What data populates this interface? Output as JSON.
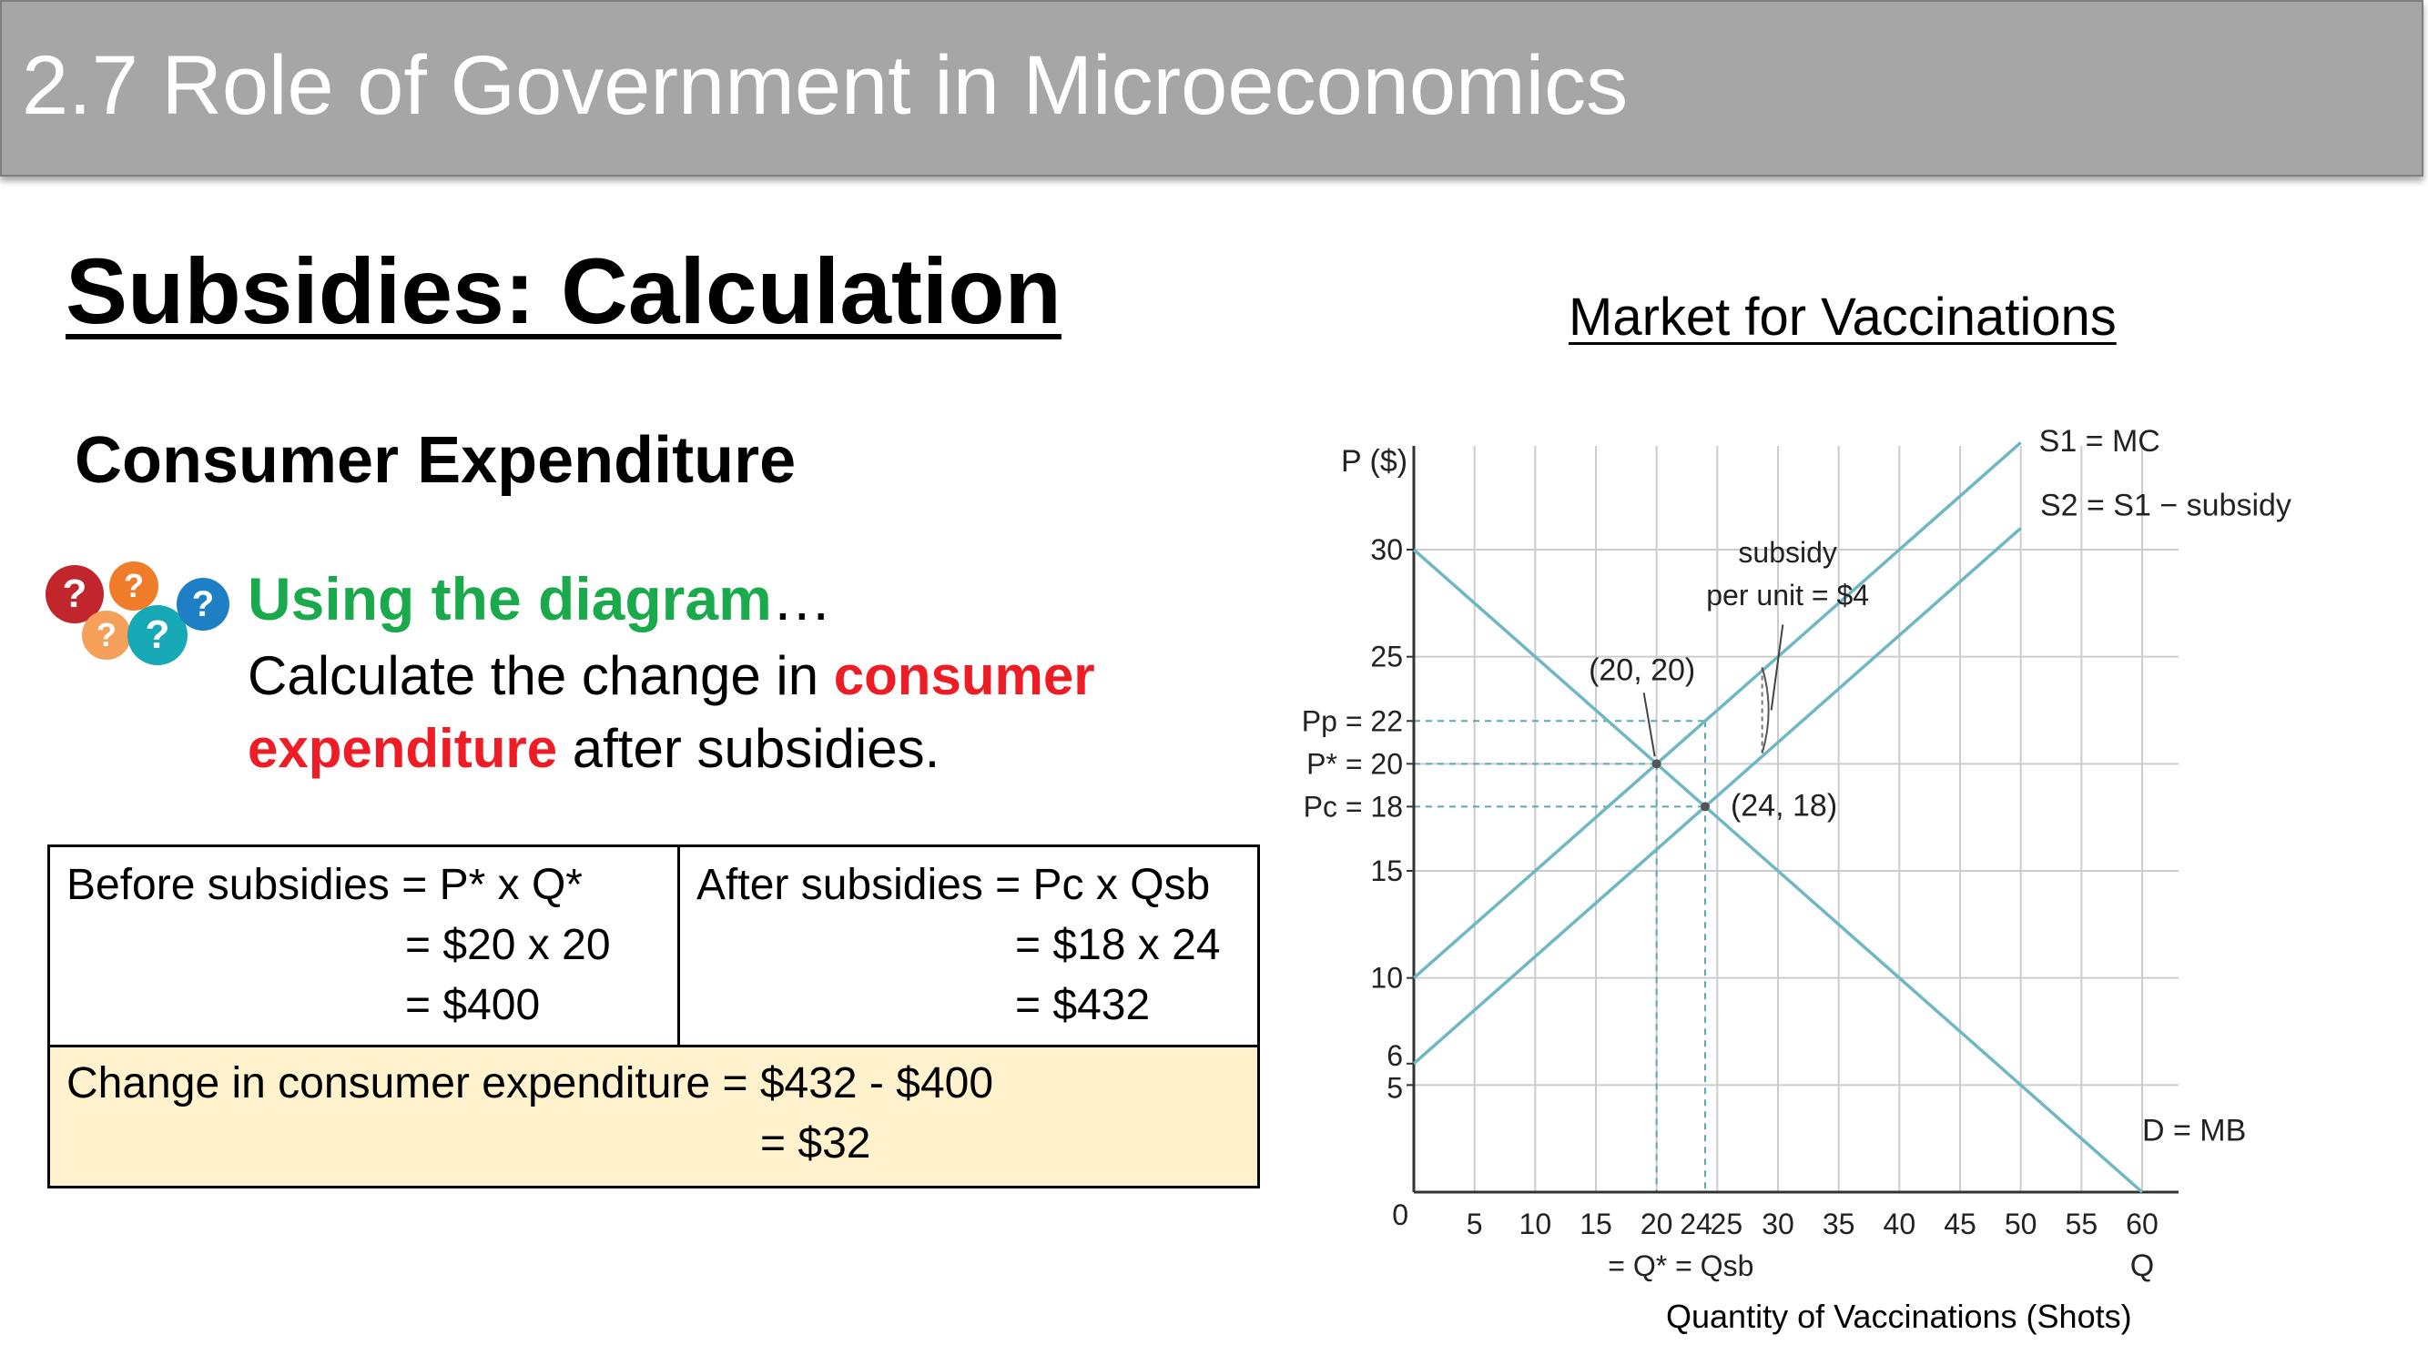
{
  "slide": {
    "title": "2.7 Role of Government in Microeconomics",
    "heading": "Subsidies: Calculation",
    "subheading": "Consumer Expenditure"
  },
  "icons": {
    "question_bubbles": "question-bubbles-icon",
    "colors": [
      "#c0262c",
      "#f07b29",
      "#f5a05a",
      "#17a9b5",
      "#1f7fc4"
    ]
  },
  "prompt": {
    "heading": "Using the diagram",
    "ellipsis": "…",
    "line1_text": "Calculate the change in ",
    "line1_highlight": "consumer",
    "line2_highlight": "expenditure",
    "line2_text": " after subsidies."
  },
  "table": {
    "before": [
      "Before subsidies = P* x Q*",
      "= $20 x 20",
      "= $400"
    ],
    "after": [
      "After subsidies = Pc x Qsb",
      "= $18 x 24",
      "= $432"
    ],
    "change": [
      "Change in consumer expenditure = $432 - $400",
      "= $32"
    ]
  },
  "chart_data": {
    "type": "line",
    "title": "Market for Vaccinations",
    "xlabel": "Q",
    "xlabel_caption": "Quantity of Vaccinations (Shots)",
    "ylabel": "P ($)",
    "xlim": [
      0,
      60
    ],
    "ylim": [
      0,
      32
    ],
    "x_ticks": [
      5,
      10,
      15,
      20,
      24,
      25,
      30,
      35,
      40,
      45,
      50,
      55,
      60
    ],
    "x_tick_labels": [
      "5",
      "10",
      "15",
      "20",
      "24",
      "25",
      "30",
      "35",
      "40",
      "45",
      "50",
      "55",
      "60"
    ],
    "x_sublabel": "= Q* = Qsb",
    "y_ticks": [
      5,
      6,
      10,
      15,
      18,
      20,
      22,
      25,
      30
    ],
    "y_tick_labels": [
      "5",
      "6",
      "10",
      "15",
      "Pc = 18",
      "P* = 20",
      "Pp = 22",
      "25",
      "30"
    ],
    "origin_label": "0",
    "grid": true,
    "series": [
      {
        "name": "S1 = MC",
        "points": [
          [
            0,
            10
          ],
          [
            50,
            35
          ]
        ]
      },
      {
        "name": "S2 = S1 − subsidy",
        "points": [
          [
            0,
            6
          ],
          [
            50,
            31
          ]
        ]
      },
      {
        "name": "D = MB",
        "points": [
          [
            0,
            30
          ],
          [
            60,
            0
          ]
        ]
      }
    ],
    "annotations": [
      {
        "text": "(20, 20)",
        "point": [
          20,
          20
        ]
      },
      {
        "text": "(24, 18)",
        "point": [
          24,
          18
        ]
      },
      {
        "text": "subsidy",
        "text2": "per unit = $4",
        "at_x": 29
      }
    ],
    "dashed_refs": [
      {
        "y": 22,
        "x_to": 24
      },
      {
        "y": 20,
        "x_to": 20
      },
      {
        "y": 18,
        "x_to": 24
      },
      {
        "x": 20,
        "y_to": 20
      },
      {
        "x": 24,
        "y_to": 22
      }
    ],
    "colors": {
      "curves": "#6fb8c3",
      "grid": "#cccccc",
      "axis": "#333333",
      "dashed": "#5aa9b6"
    }
  }
}
